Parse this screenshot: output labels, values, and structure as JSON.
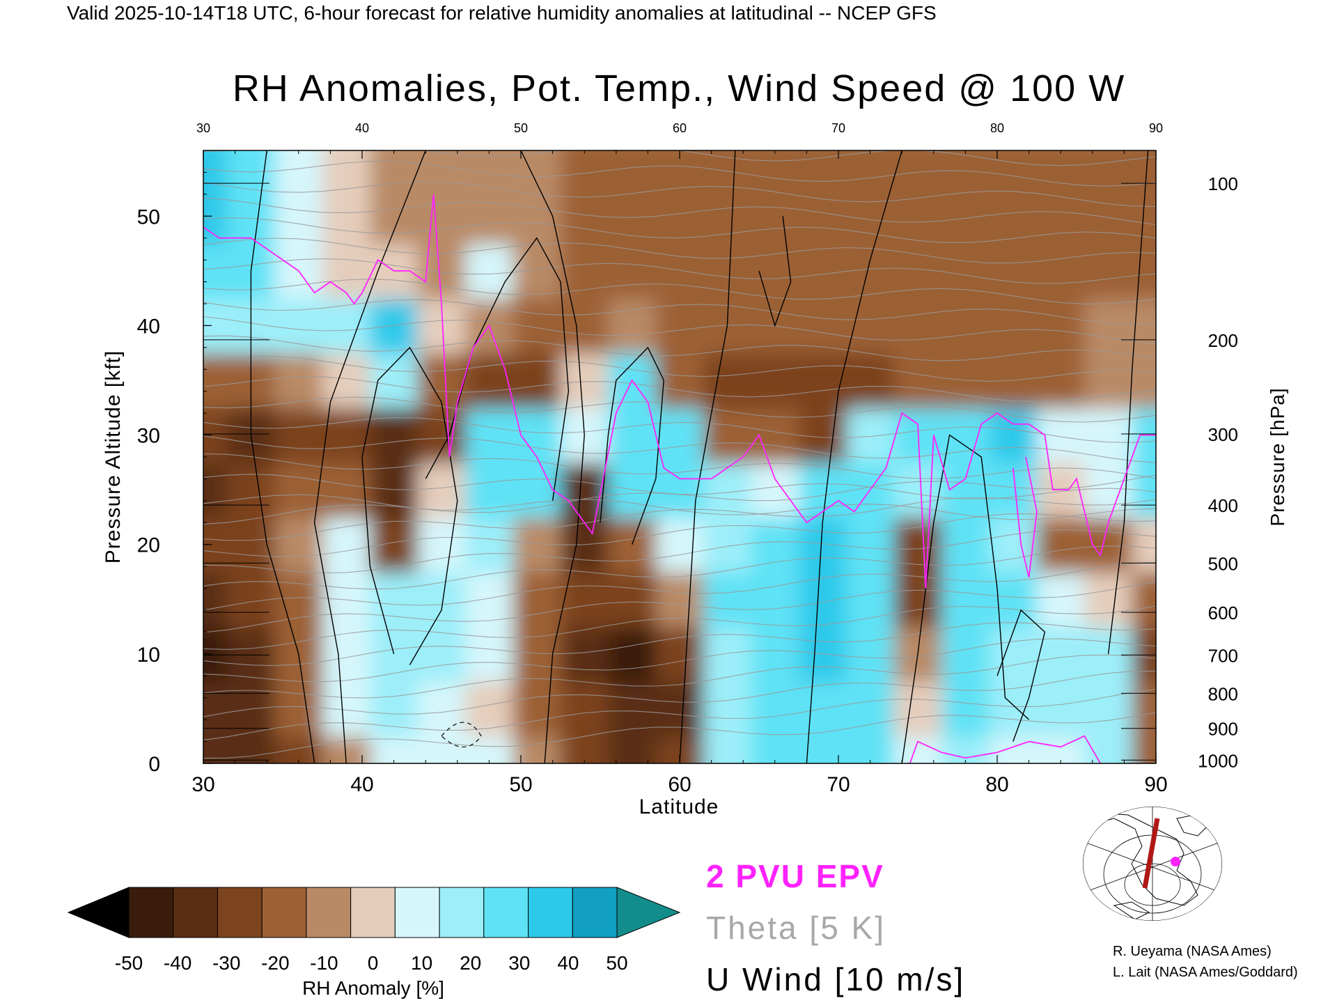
{
  "header": {
    "valid_line": "Valid 2025-10-14T18 UTC, 6-hour forecast for relative humidity anomalies at latitudinal -- NCEP GFS",
    "title": "RH Anomalies, Pot. Temp., Wind Speed @ 100 W"
  },
  "legend": {
    "epv": "2 PVU EPV",
    "theta": "Theta [5 K]",
    "uwind": "U Wind [10 m/s]"
  },
  "credits": {
    "line1": "R. Ueyama (NASA Ames)",
    "line2": "L. Lait (NASA Ames/Goddard)"
  },
  "colors": {
    "epv_magenta": "#ff22ff",
    "theta_gray": "#a0a0a0",
    "wind_black": "#000000",
    "map_path_red": "#b01818"
  },
  "chart_data": {
    "type": "heatmap",
    "title": "RH Anomalies, Pot. Temp., Wind Speed @ 100 W",
    "xlabel": "Latitude",
    "ylabel": "Pressure Altitude [kft]",
    "ylabel_right": "Pressure [hPa]",
    "xlim": [
      30,
      90
    ],
    "ylim": [
      0,
      56
    ],
    "x_ticks": [
      30,
      40,
      50,
      60,
      70,
      80,
      90
    ],
    "x_tick_labels": [
      "30",
      "40",
      "50",
      "60",
      "70",
      "80",
      "90"
    ],
    "y_ticks": [
      0,
      10,
      20,
      30,
      40,
      50
    ],
    "y_tick_labels": [
      "0",
      "10",
      "20",
      "30",
      "40",
      "50"
    ],
    "pressure_ticks": [
      {
        "hPa": "100",
        "kft": 53
      },
      {
        "hPa": "200",
        "kft": 38.7
      },
      {
        "hPa": "300",
        "kft": 30.1
      },
      {
        "hPa": "400",
        "kft": 23.6
      },
      {
        "hPa": "500",
        "kft": 18.3
      },
      {
        "hPa": "600",
        "kft": 13.8
      },
      {
        "hPa": "700",
        "kft": 9.9
      },
      {
        "hPa": "800",
        "kft": 6.4
      },
      {
        "hPa": "900",
        "kft": 3.2
      },
      {
        "hPa": "1000",
        "kft": 0.3
      }
    ],
    "colorbar": {
      "label": "RH Anomaly [%]",
      "ticks": [
        "-50",
        "-40",
        "-30",
        "-20",
        "-10",
        "0",
        "10",
        "20",
        "30",
        "40",
        "50"
      ],
      "colors": [
        "#3a1c0c",
        "#5a2e12",
        "#7b431e",
        "#9c6036",
        "#b98a66",
        "#e5cdbc",
        "#d6f6fb",
        "#9ceef9",
        "#5fe2f5",
        "#2ec9ea",
        "#119fc4"
      ],
      "under_color": "#000000",
      "over_color": "#138c8c"
    },
    "rh_anomaly": {
      "x": [
        30,
        33,
        36,
        39,
        42,
        45,
        48,
        51,
        54,
        57,
        60,
        63,
        66,
        69,
        72,
        75,
        78,
        81,
        84,
        87,
        90
      ],
      "y": [
        0,
        5,
        10,
        15,
        20,
        25,
        30,
        35,
        40,
        45,
        50,
        55
      ],
      "values": [
        [
          -40,
          -35,
          -25,
          -10,
          10,
          15,
          10,
          -10,
          -30,
          -35,
          -30,
          20,
          35,
          30,
          35,
          15,
          25,
          10,
          15,
          20,
          -15
        ],
        [
          -35,
          -35,
          -20,
          10,
          20,
          15,
          5,
          -20,
          -30,
          -40,
          -35,
          20,
          35,
          35,
          35,
          5,
          30,
          20,
          20,
          20,
          -20
        ],
        [
          -45,
          -35,
          -15,
          15,
          25,
          20,
          10,
          -15,
          -35,
          -45,
          -30,
          25,
          35,
          40,
          35,
          -10,
          35,
          25,
          25,
          20,
          -25
        ],
        [
          -35,
          -30,
          -15,
          15,
          20,
          20,
          15,
          -20,
          -30,
          -30,
          -10,
          30,
          35,
          40,
          35,
          -30,
          35,
          30,
          15,
          5,
          -20
        ],
        [
          -30,
          -25,
          -10,
          10,
          -30,
          15,
          20,
          -10,
          -40,
          -20,
          10,
          25,
          30,
          40,
          35,
          -30,
          35,
          25,
          -20,
          -15,
          0
        ],
        [
          -35,
          -30,
          -15,
          -15,
          -40,
          0,
          30,
          35,
          -35,
          30,
          30,
          20,
          15,
          35,
          35,
          25,
          35,
          30,
          0,
          10,
          30
        ],
        [
          -25,
          -40,
          -30,
          -25,
          -35,
          -30,
          35,
          35,
          10,
          35,
          30,
          -20,
          -15,
          -30,
          25,
          30,
          35,
          40,
          15,
          10,
          35
        ],
        [
          -20,
          -15,
          -10,
          5,
          20,
          -20,
          -30,
          -25,
          0,
          35,
          -15,
          -25,
          -30,
          -30,
          -25,
          -20,
          -20,
          -20,
          -15,
          -10,
          -10
        ],
        [
          20,
          25,
          20,
          25,
          40,
          0,
          -10,
          -15,
          -15,
          -10,
          -20,
          -20,
          -20,
          -20,
          -15,
          -15,
          -15,
          -15,
          -15,
          -10,
          -10
        ],
        [
          30,
          35,
          15,
          5,
          0,
          -5,
          10,
          -10,
          -15,
          -15,
          -20,
          -20,
          -20,
          -20,
          -15,
          -15,
          -15,
          -15,
          -15,
          -15,
          -15
        ],
        [
          40,
          30,
          10,
          0,
          -5,
          -5,
          -5,
          -10,
          -15,
          -15,
          -15,
          -20,
          -20,
          -20,
          -15,
          -15,
          -15,
          -15,
          -15,
          -15,
          -15
        ],
        [
          40,
          30,
          10,
          0,
          -5,
          -5,
          -5,
          -10,
          -15,
          -15,
          -15,
          -15,
          -15,
          -15,
          -15,
          -15,
          -15,
          -15,
          -15,
          -15,
          -15
        ]
      ]
    }
  }
}
